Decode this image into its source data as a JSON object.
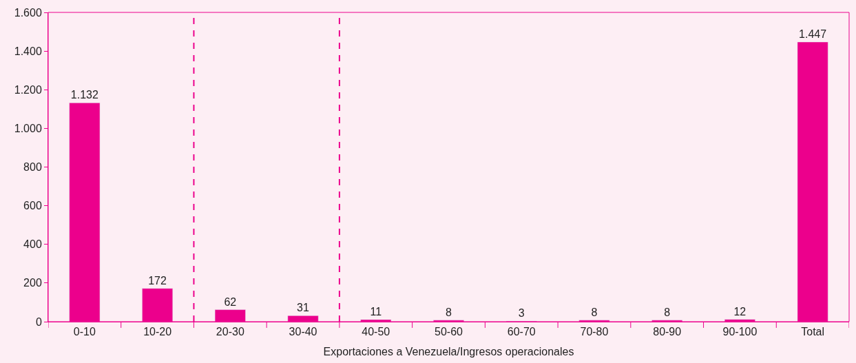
{
  "chart_data": {
    "type": "bar",
    "xlabel": "Exportaciones a Venezuela/Ingresos operacionales",
    "categories": [
      "0-10",
      "10-20",
      "20-30",
      "30-40",
      "40-50",
      "50-60",
      "60-70",
      "70-80",
      "80-90",
      "90-100",
      "Total"
    ],
    "values": [
      1132,
      172,
      62,
      31,
      11,
      8,
      3,
      8,
      8,
      12,
      1447
    ],
    "value_labels": [
      "1.132",
      "172",
      "62",
      "31",
      "11",
      "8",
      "3",
      "8",
      "8",
      "12",
      "1.447"
    ],
    "color": "#ec008c",
    "ylim": [
      0,
      1600
    ],
    "yticks": [
      0,
      200,
      400,
      600,
      800,
      {
        "value": 1000,
        "label": "1.000"
      },
      {
        "value": 1200,
        "label": "1.200"
      },
      {
        "value": 1400,
        "label": "1.400"
      },
      {
        "value": 1600,
        "label": "1.600"
      }
    ],
    "grid": false,
    "legend": false
  }
}
